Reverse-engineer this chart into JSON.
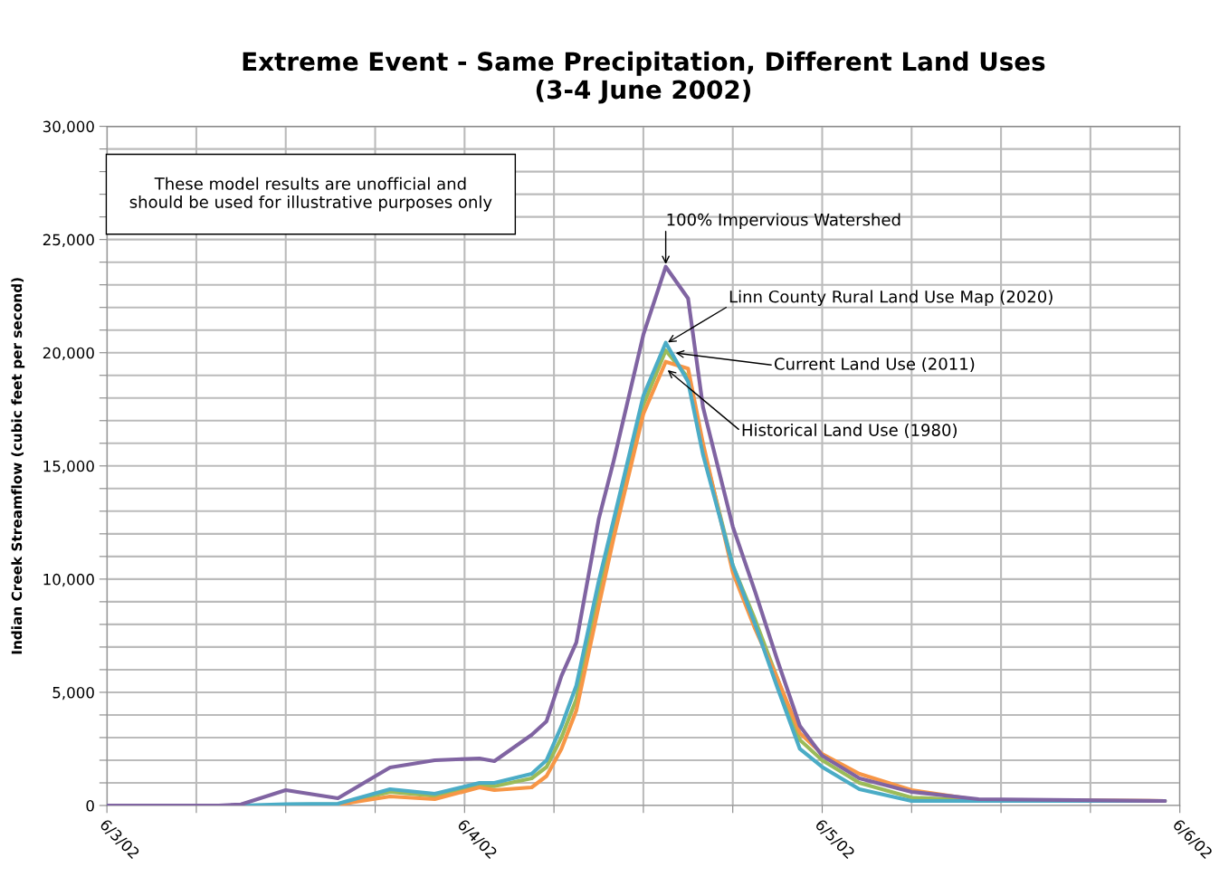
{
  "chart_data": {
    "type": "line",
    "title": "Extreme Event - Same Precipitation, Different Land Uses\n(3-4 June 2002)",
    "ylabel": "Indian Creek Streamflow (cubic feet per second)",
    "x": [
      "2002-06-03T00:00",
      "2002-06-03T07:30",
      "2002-06-03T09:00",
      "2002-06-03T12:00",
      "2002-06-03T15:30",
      "2002-06-03T19:00",
      "2002-06-03T22:00",
      "2002-06-04T01:00",
      "2002-06-04T02:00",
      "2002-06-04T04:30",
      "2002-06-04T05:30",
      "2002-06-04T06:30",
      "2002-06-04T07:30",
      "2002-06-04T09:00",
      "2002-06-04T10:00",
      "2002-06-04T12:00",
      "2002-06-04T13:30",
      "2002-06-04T15:00",
      "2002-06-04T16:00",
      "2002-06-04T18:00",
      "2002-06-04T19:30",
      "2002-06-04T21:00",
      "2002-06-04T22:30",
      "2002-06-05T00:00",
      "2002-06-05T02:30",
      "2002-06-05T06:00",
      "2002-06-05T10:30",
      "2002-06-05T23:00"
    ],
    "series": [
      {
        "color": "#9bbb59",
        "values": [
          null,
          null,
          null,
          40,
          60,
          600,
          420,
          850,
          850,
          1200,
          1700,
          3000,
          4700,
          9400,
          12200,
          17700,
          20100,
          18900,
          15800,
          10600,
          8200,
          5600,
          2900,
          2000,
          1000,
          350,
          220,
          200
        ]
      },
      {
        "color": "#f79646",
        "values": [
          null,
          null,
          null,
          20,
          40,
          400,
          280,
          800,
          680,
          800,
          1300,
          2500,
          4200,
          8800,
          11800,
          17300,
          19600,
          19300,
          16000,
          10300,
          7800,
          5600,
          3200,
          2280,
          1400,
          680,
          240,
          200
        ]
      },
      {
        "color": "#4bacc6",
        "values": [
          0,
          0,
          0,
          60,
          80,
          720,
          520,
          1000,
          1000,
          1400,
          2000,
          3500,
          5300,
          9900,
          12600,
          18100,
          20440,
          18720,
          15500,
          10600,
          8000,
          5200,
          2500,
          1700,
          720,
          200,
          200,
          200
        ]
      },
      {
        "color": "#8064a2",
        "values": [
          0,
          0,
          50,
          680,
          320,
          1680,
          2000,
          2080,
          1960,
          3120,
          3720,
          5720,
          7200,
          12640,
          15200,
          20800,
          23800,
          22400,
          17600,
          12320,
          9440,
          6400,
          3520,
          2200,
          1200,
          600,
          280,
          200
        ]
      }
    ],
    "xlim": [
      "2002-06-03T00:00",
      "2002-06-06T00:00"
    ],
    "xticks": [
      {
        "value": "2002-06-03",
        "label": "6/3/02"
      },
      {
        "value": "2002-06-03T06:00",
        "label": null
      },
      {
        "value": "2002-06-03T12:00",
        "label": null
      },
      {
        "value": "2002-06-03T18:00",
        "label": null
      },
      {
        "value": "2002-06-04",
        "label": "6/4/02"
      },
      {
        "value": "2002-06-04T06:00",
        "label": null
      },
      {
        "value": "2002-06-04T12:00",
        "label": null
      },
      {
        "value": "2002-06-04T18:00",
        "label": null
      },
      {
        "value": "2002-06-05",
        "label": "6/5/02"
      },
      {
        "value": "2002-06-05T06:00",
        "label": null
      },
      {
        "value": "2002-06-05T12:00",
        "label": null
      },
      {
        "value": "2002-06-05T18:00",
        "label": null
      },
      {
        "value": "2002-06-06",
        "label": "6/6/02"
      }
    ],
    "ylim": [
      0,
      30000
    ],
    "yticks": [
      {
        "value": 0,
        "label": "0"
      },
      {
        "value": 1000,
        "label": null
      },
      {
        "value": 2000,
        "label": null
      },
      {
        "value": 3000,
        "label": null
      },
      {
        "value": 4000,
        "label": null
      },
      {
        "value": 5000,
        "label": "5,000"
      },
      {
        "value": 6000,
        "label": null
      },
      {
        "value": 7000,
        "label": null
      },
      {
        "value": 8000,
        "label": null
      },
      {
        "value": 9000,
        "label": null
      },
      {
        "value": 10000,
        "label": "10,000"
      },
      {
        "value": 11000,
        "label": null
      },
      {
        "value": 12000,
        "label": null
      },
      {
        "value": 13000,
        "label": null
      },
      {
        "value": 14000,
        "label": null
      },
      {
        "value": 15000,
        "label": "15,000"
      },
      {
        "value": 16000,
        "label": null
      },
      {
        "value": 17000,
        "label": null
      },
      {
        "value": 18000,
        "label": null
      },
      {
        "value": 19000,
        "label": null
      },
      {
        "value": 20000,
        "label": "20,000"
      },
      {
        "value": 21000,
        "label": null
      },
      {
        "value": 22000,
        "label": null
      },
      {
        "value": 23000,
        "label": null
      },
      {
        "value": 24000,
        "label": null
      },
      {
        "value": 25000,
        "label": "25,000"
      },
      {
        "value": 26000,
        "label": null
      },
      {
        "value": 27000,
        "label": null
      },
      {
        "value": 28000,
        "label": null
      },
      {
        "value": 29000,
        "label": null
      },
      {
        "value": 30000,
        "label": "30,000"
      }
    ],
    "grid": true,
    "annotations": [
      "These model results are unofficial and\nshould be used for illustrative purposes only",
      {
        "text": "100% Impervious Watershed",
        "x": "2002-06-04T13:30",
        "y": 23800
      },
      {
        "text": "Linn County Rural Land Use Map (2020)",
        "x": "2002-06-04T13:30",
        "y": 20400
      },
      {
        "text": "Current Land Use (2011)",
        "x": "2002-06-04T14:00",
        "y": 20000
      },
      {
        "text": "Historical Land Use (1980)",
        "x": "2002-06-04T13:30",
        "y": 19300
      }
    ]
  }
}
